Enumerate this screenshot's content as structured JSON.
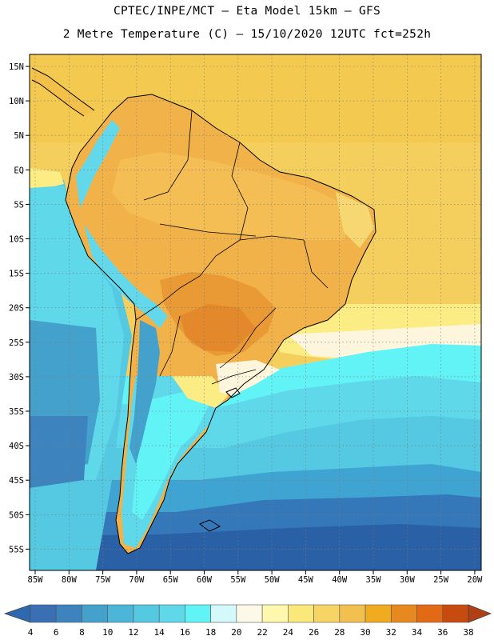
{
  "header": {
    "title_line1": "CPTEC/INPE/MCT –  Eta Model 15km – GFS",
    "title_line2": "2 Metre Temperature (C) – 15/10/2020 12UTC fct=252h"
  },
  "map": {
    "lon_ticks": [
      "85W",
      "80W",
      "75W",
      "70W",
      "65W",
      "60W",
      "55W",
      "50W",
      "45W",
      "40W",
      "35W",
      "30W",
      "25W",
      "20W"
    ],
    "lat_ticks": [
      "15N",
      "10N",
      "5N",
      "EQ",
      "5S",
      "10S",
      "15S",
      "20S",
      "25S",
      "30S",
      "35S",
      "40S",
      "45S",
      "50S",
      "55S"
    ],
    "grid": true,
    "grid_style": "dotted"
  },
  "colorbar": {
    "labels": [
      "4",
      "6",
      "8",
      "10",
      "12",
      "14",
      "16",
      "18",
      "20",
      "22",
      "24",
      "26",
      "28",
      "30",
      "32",
      "34",
      "36",
      "38"
    ],
    "colors": [
      "#3a6fb3",
      "#3d84bf",
      "#44a1cc",
      "#4cb6d8",
      "#55c8e2",
      "#5fd8ea",
      "#62f3f7",
      "#d5f8fb",
      "#fdf9e8",
      "#fdf8ad",
      "#fbe87a",
      "#f7d564",
      "#f2c04f",
      "#f1ab20",
      "#e8891f",
      "#e36a15",
      "#c74a0e"
    ],
    "low_arrow_color": "#2e68ae",
    "high_arrow_color": "#b04014"
  },
  "colors": {
    "ocean_deep": "#2a60a6",
    "ocean_cold": "#3478b9",
    "ocean_cool": "#40a4d3",
    "ocean_mid": "#55c8e2",
    "ocean_warm": "#5fd8ea",
    "ocean_light": "#62f3f7",
    "land_hot": "#e3892b",
    "land_warm": "#f2b24a",
    "land_mild": "#f6d064",
    "sea_tropic": "#f5d35e",
    "sea_pale": "#fbec84",
    "andes": "#62d8ea",
    "border": "#000000",
    "grid": "#7a7a7a"
  }
}
